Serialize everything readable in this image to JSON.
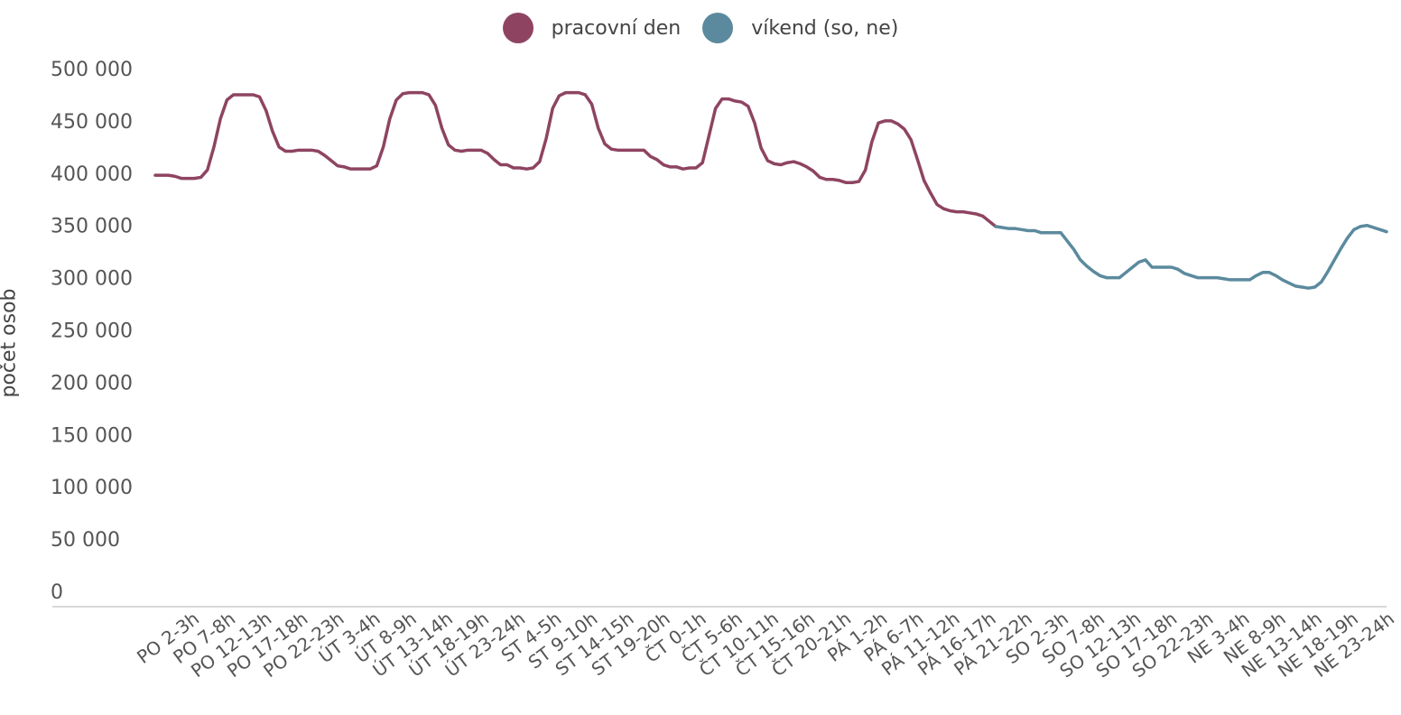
{
  "chart_data": {
    "type": "line",
    "ylabel": "počet osob",
    "ylim": [
      0,
      500000
    ],
    "yticks": [
      0,
      50000,
      100000,
      150000,
      200000,
      250000,
      300000,
      350000,
      400000,
      450000,
      500000
    ],
    "ytick_labels": [
      "0",
      "50 000",
      "100 000",
      "150 000",
      "200 000",
      "250 000",
      "300 000",
      "350 000",
      "400 000",
      "450 000",
      "500 000"
    ],
    "legend": [
      {
        "name": "pracovní den",
        "color": "#8e4461"
      },
      {
        "name": "víkend (so, ne)",
        "color": "#5b8a9e"
      }
    ],
    "legend_position": "top-center",
    "grid": false,
    "x_tick_labels": [
      "PO 2-3h",
      "PO 7-8h",
      "PO 12-13h",
      "PO 17-18h",
      "PO 22-23h",
      "ÚT 3-4h",
      "ÚT 8-9h",
      "ÚT 13-14h",
      "ÚT 18-19h",
      "ÚT 23-24h",
      "ST 4-5h",
      "ST 9-10h",
      "ST 14-15h",
      "ST 19-20h",
      "ČT 0-1h",
      "ČT 5-6h",
      "ČT 10-11h",
      "ČT 15-16h",
      "ČT 20-21h",
      "PÁ 1-2h",
      "PÁ 6-7h",
      "PÁ 11-12h",
      "PÁ 16-17h",
      "PÁ 21-22h",
      "SO 2-3h",
      "SO 7-8h",
      "SO 12-13h",
      "SO 17-18h",
      "SO 22-23h",
      "NE 3-4h",
      "NE 8-9h",
      "NE 13-14h",
      "NE 18-19h",
      "NE 23-24h"
    ],
    "series": [
      {
        "name": "pracovní den",
        "color": "#8e4461",
        "values": [
          398000,
          398000,
          398000,
          397000,
          395000,
          395000,
          395000,
          396000,
          403000,
          425000,
          452000,
          470000,
          475000,
          475000,
          475000,
          475000,
          473000,
          460000,
          440000,
          425000,
          421000,
          421000,
          422000,
          422000,
          422000,
          421000,
          417000,
          412000,
          407000,
          406000,
          404000,
          404000,
          404000,
          404000,
          407000,
          425000,
          452000,
          470000,
          476000,
          477000,
          477000,
          477000,
          475000,
          465000,
          443000,
          427000,
          422000,
          421000,
          422000,
          422000,
          422000,
          419000,
          413000,
          408000,
          408000,
          405000,
          405000,
          404000,
          405000,
          411000,
          433000,
          462000,
          474000,
          477000,
          477000,
          477000,
          475000,
          466000,
          443000,
          428000,
          423000,
          422000,
          422000,
          422000,
          422000,
          422000,
          416000,
          413000,
          408000,
          406000,
          406000,
          404000,
          405000,
          405000,
          410000,
          436000,
          462000,
          471000,
          471000,
          469000,
          468000,
          464000,
          448000,
          424000,
          412000,
          409000,
          408000,
          410000,
          411000,
          409000,
          406000,
          402000,
          396000,
          394000,
          394000,
          393000,
          391000,
          391000,
          392000,
          403000,
          430000,
          448000,
          450000,
          450000,
          447000,
          442000,
          432000,
          413000,
          393000,
          381000,
          370000,
          366000,
          364000,
          363000,
          363000,
          362000,
          361000,
          359000,
          354000,
          349000
        ]
      },
      {
        "name": "víkend (so, ne)",
        "color": "#5b8a9e",
        "values": [
          349000,
          348000,
          347000,
          347000,
          346000,
          345000,
          345000,
          343000,
          343000,
          343000,
          343000,
          335000,
          327000,
          317000,
          311000,
          306000,
          302000,
          300000,
          300000,
          300000,
          305000,
          310000,
          315000,
          317000,
          310000,
          310000,
          310000,
          310000,
          308000,
          304000,
          302000,
          300000,
          300000,
          300000,
          300000,
          299000,
          298000,
          298000,
          298000,
          298000,
          302000,
          305000,
          305000,
          302000,
          298000,
          295000,
          292000,
          291000,
          290000,
          291000,
          296000,
          306000,
          317000,
          328000,
          338000,
          346000,
          349000,
          350000,
          348000,
          346000,
          344000
        ]
      }
    ]
  }
}
